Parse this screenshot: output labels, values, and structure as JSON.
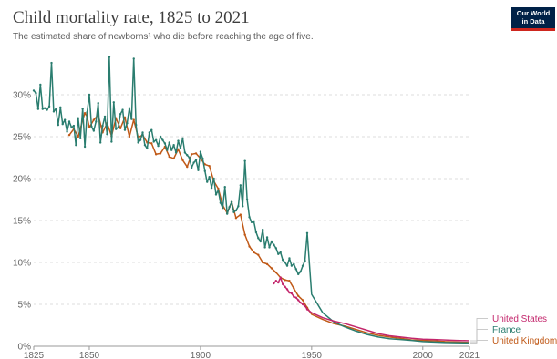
{
  "header": {
    "title": "Child mortality rate, 1825 to 2021",
    "subtitle": "The estimated share of newborns¹ who die before reaching the age of five.",
    "logo_line1": "Our World",
    "logo_line2": "in Data"
  },
  "colors": {
    "United States": "#c3256b",
    "France": "#2a7d6f",
    "United Kingdom": "#c05917",
    "logo_bg": "#002147",
    "logo_accent": "#ce261e"
  },
  "chart_data": {
    "type": "line",
    "title": "Child mortality rate, 1825 to 2021",
    "subtitle": "The estimated share of newborns¹ who die before reaching the age of five.",
    "xlabel": "",
    "ylabel": "",
    "xlim": [
      1825,
      2021
    ],
    "ylim": [
      0,
      35
    ],
    "y_ticks": [
      0,
      5,
      10,
      15,
      20,
      25,
      30
    ],
    "y_tick_labels": [
      "0%",
      "5%",
      "10%",
      "15%",
      "20%",
      "25%",
      "30%"
    ],
    "x_ticks": [
      1825,
      1850,
      1900,
      1950,
      2000,
      2021
    ],
    "x_tick_labels": [
      "1825",
      "1850",
      "1900",
      "1950",
      "2000",
      "2021"
    ],
    "grid": "horizontal dashed",
    "legend": "right, end labels",
    "series": [
      {
        "name": "France",
        "x": [
          1825,
          1826,
          1827,
          1828,
          1829,
          1830,
          1831,
          1832,
          1833,
          1834,
          1835,
          1836,
          1837,
          1838,
          1839,
          1840,
          1841,
          1842,
          1843,
          1844,
          1845,
          1846,
          1847,
          1848,
          1849,
          1850,
          1851,
          1852,
          1853,
          1854,
          1855,
          1856,
          1857,
          1858,
          1859,
          1860,
          1861,
          1862,
          1863,
          1864,
          1865,
          1866,
          1867,
          1868,
          1869,
          1870,
          1871,
          1872,
          1873,
          1874,
          1875,
          1876,
          1877,
          1878,
          1879,
          1880,
          1881,
          1882,
          1883,
          1884,
          1885,
          1886,
          1887,
          1888,
          1889,
          1890,
          1891,
          1892,
          1893,
          1894,
          1895,
          1896,
          1897,
          1898,
          1899,
          1900,
          1901,
          1902,
          1903,
          1904,
          1905,
          1906,
          1907,
          1908,
          1909,
          1910,
          1911,
          1912,
          1913,
          1914,
          1915,
          1916,
          1917,
          1918,
          1919,
          1920,
          1921,
          1922,
          1923,
          1924,
          1925,
          1926,
          1927,
          1928,
          1929,
          1930,
          1931,
          1932,
          1933,
          1934,
          1935,
          1936,
          1937,
          1938,
          1939,
          1940,
          1941,
          1942,
          1943,
          1944,
          1945,
          1946,
          1947,
          1948,
          1950,
          1955,
          1960,
          1965,
          1970,
          1975,
          1980,
          1985,
          1990,
          1995,
          2000,
          2005,
          2010,
          2015,
          2021
        ],
        "y": [
          30.5,
          30.2,
          28.3,
          31.2,
          28.3,
          28.4,
          28.2,
          28.6,
          33.8,
          28.0,
          28.3,
          26.4,
          28.5,
          26.5,
          27.0,
          25.6,
          26.8,
          26.1,
          26.3,
          24.0,
          27.2,
          24.8,
          28.3,
          23.8,
          27.9,
          30.0,
          26.2,
          25.7,
          26.8,
          29.0,
          24.3,
          26.3,
          27.4,
          25.3,
          34.5,
          24.4,
          29.1,
          25.9,
          26.1,
          27.7,
          28.2,
          25.8,
          26.6,
          28.4,
          27.1,
          34.3,
          26.4,
          24.3,
          24.6,
          25.5,
          24.0,
          23.6,
          25.5,
          25.8,
          24.4,
          24.6,
          23.9,
          25.0,
          24.6,
          24.2,
          23.4,
          24.3,
          23.4,
          24.0,
          23.1,
          24.5,
          23.6,
          24.8,
          23.1,
          22.8,
          22.5,
          21.3,
          21.9,
          22.2,
          21.0,
          23.2,
          22.4,
          20.9,
          19.6,
          20.2,
          18.9,
          20.0,
          18.1,
          18.6,
          17.1,
          16.5,
          19.0,
          15.8,
          16.6,
          17.2,
          16.0,
          16.2,
          16.7,
          19.2,
          16.7,
          22.1,
          17.5,
          15.4,
          14.8,
          14.9,
          13.6,
          12.9,
          12.5,
          13.9,
          11.8,
          13.0,
          11.8,
          12.5,
          12.1,
          11.7,
          11.0,
          11.2,
          10.3,
          10.0,
          9.6,
          10.5,
          9.6,
          9.8,
          9.2,
          8.6,
          8.9,
          9.6,
          10.2,
          13.5,
          6.2,
          4.0,
          2.9,
          2.3,
          1.8,
          1.4,
          1.1,
          0.9,
          0.8,
          0.7,
          0.55,
          0.5,
          0.45,
          0.42,
          0.4
        ]
      },
      {
        "name": "United Kingdom",
        "x": [
          1841,
          1843,
          1845,
          1847,
          1848,
          1849,
          1850,
          1852,
          1854,
          1856,
          1858,
          1860,
          1862,
          1864,
          1866,
          1868,
          1870,
          1872,
          1874,
          1876,
          1878,
          1880,
          1882,
          1884,
          1886,
          1888,
          1890,
          1892,
          1894,
          1896,
          1898,
          1900,
          1902,
          1904,
          1906,
          1908,
          1910,
          1912,
          1914,
          1916,
          1918,
          1920,
          1922,
          1924,
          1926,
          1928,
          1930,
          1932,
          1934,
          1936,
          1938,
          1940,
          1942,
          1944,
          1946,
          1948,
          1950,
          1955,
          1960,
          1965,
          1970,
          1975,
          1980,
          1985,
          1990,
          1995,
          2000,
          2005,
          2010,
          2015,
          2021
        ],
        "y": [
          25.2,
          25.9,
          25.0,
          27.0,
          27.8,
          27.4,
          26.1,
          27.0,
          27.6,
          25.5,
          26.6,
          25.1,
          27.2,
          26.0,
          27.3,
          25.0,
          27.0,
          24.9,
          25.2,
          24.3,
          24.2,
          22.9,
          23.0,
          23.8,
          22.6,
          22.4,
          23.5,
          22.2,
          21.4,
          22.9,
          23.0,
          22.4,
          21.7,
          21.5,
          19.7,
          18.8,
          16.8,
          15.9,
          17.2,
          15.3,
          15.7,
          13.3,
          11.9,
          11.2,
          10.9,
          10.0,
          9.8,
          9.3,
          8.8,
          8.2,
          7.9,
          7.8,
          6.9,
          6.0,
          5.5,
          4.6,
          3.8,
          3.2,
          2.7,
          2.4,
          2.0,
          1.6,
          1.3,
          1.1,
          0.95,
          0.75,
          0.7,
          0.65,
          0.55,
          0.5,
          0.45
        ]
      },
      {
        "name": "United States",
        "x": [
          1933,
          1934,
          1935,
          1936,
          1937,
          1938,
          1939,
          1940,
          1941,
          1942,
          1943,
          1944,
          1945,
          1946,
          1947,
          1948,
          1950,
          1955,
          1960,
          1965,
          1970,
          1975,
          1980,
          1985,
          1990,
          1995,
          2000,
          2005,
          2010,
          2015,
          2021
        ],
        "y": [
          7.5,
          7.8,
          7.6,
          8.2,
          7.4,
          7.1,
          6.8,
          6.4,
          6.3,
          5.9,
          5.8,
          5.5,
          5.2,
          5.0,
          4.8,
          4.4,
          4.0,
          3.4,
          3.0,
          2.7,
          2.3,
          1.9,
          1.5,
          1.25,
          1.1,
          0.95,
          0.85,
          0.8,
          0.75,
          0.7,
          0.65
        ]
      }
    ]
  }
}
